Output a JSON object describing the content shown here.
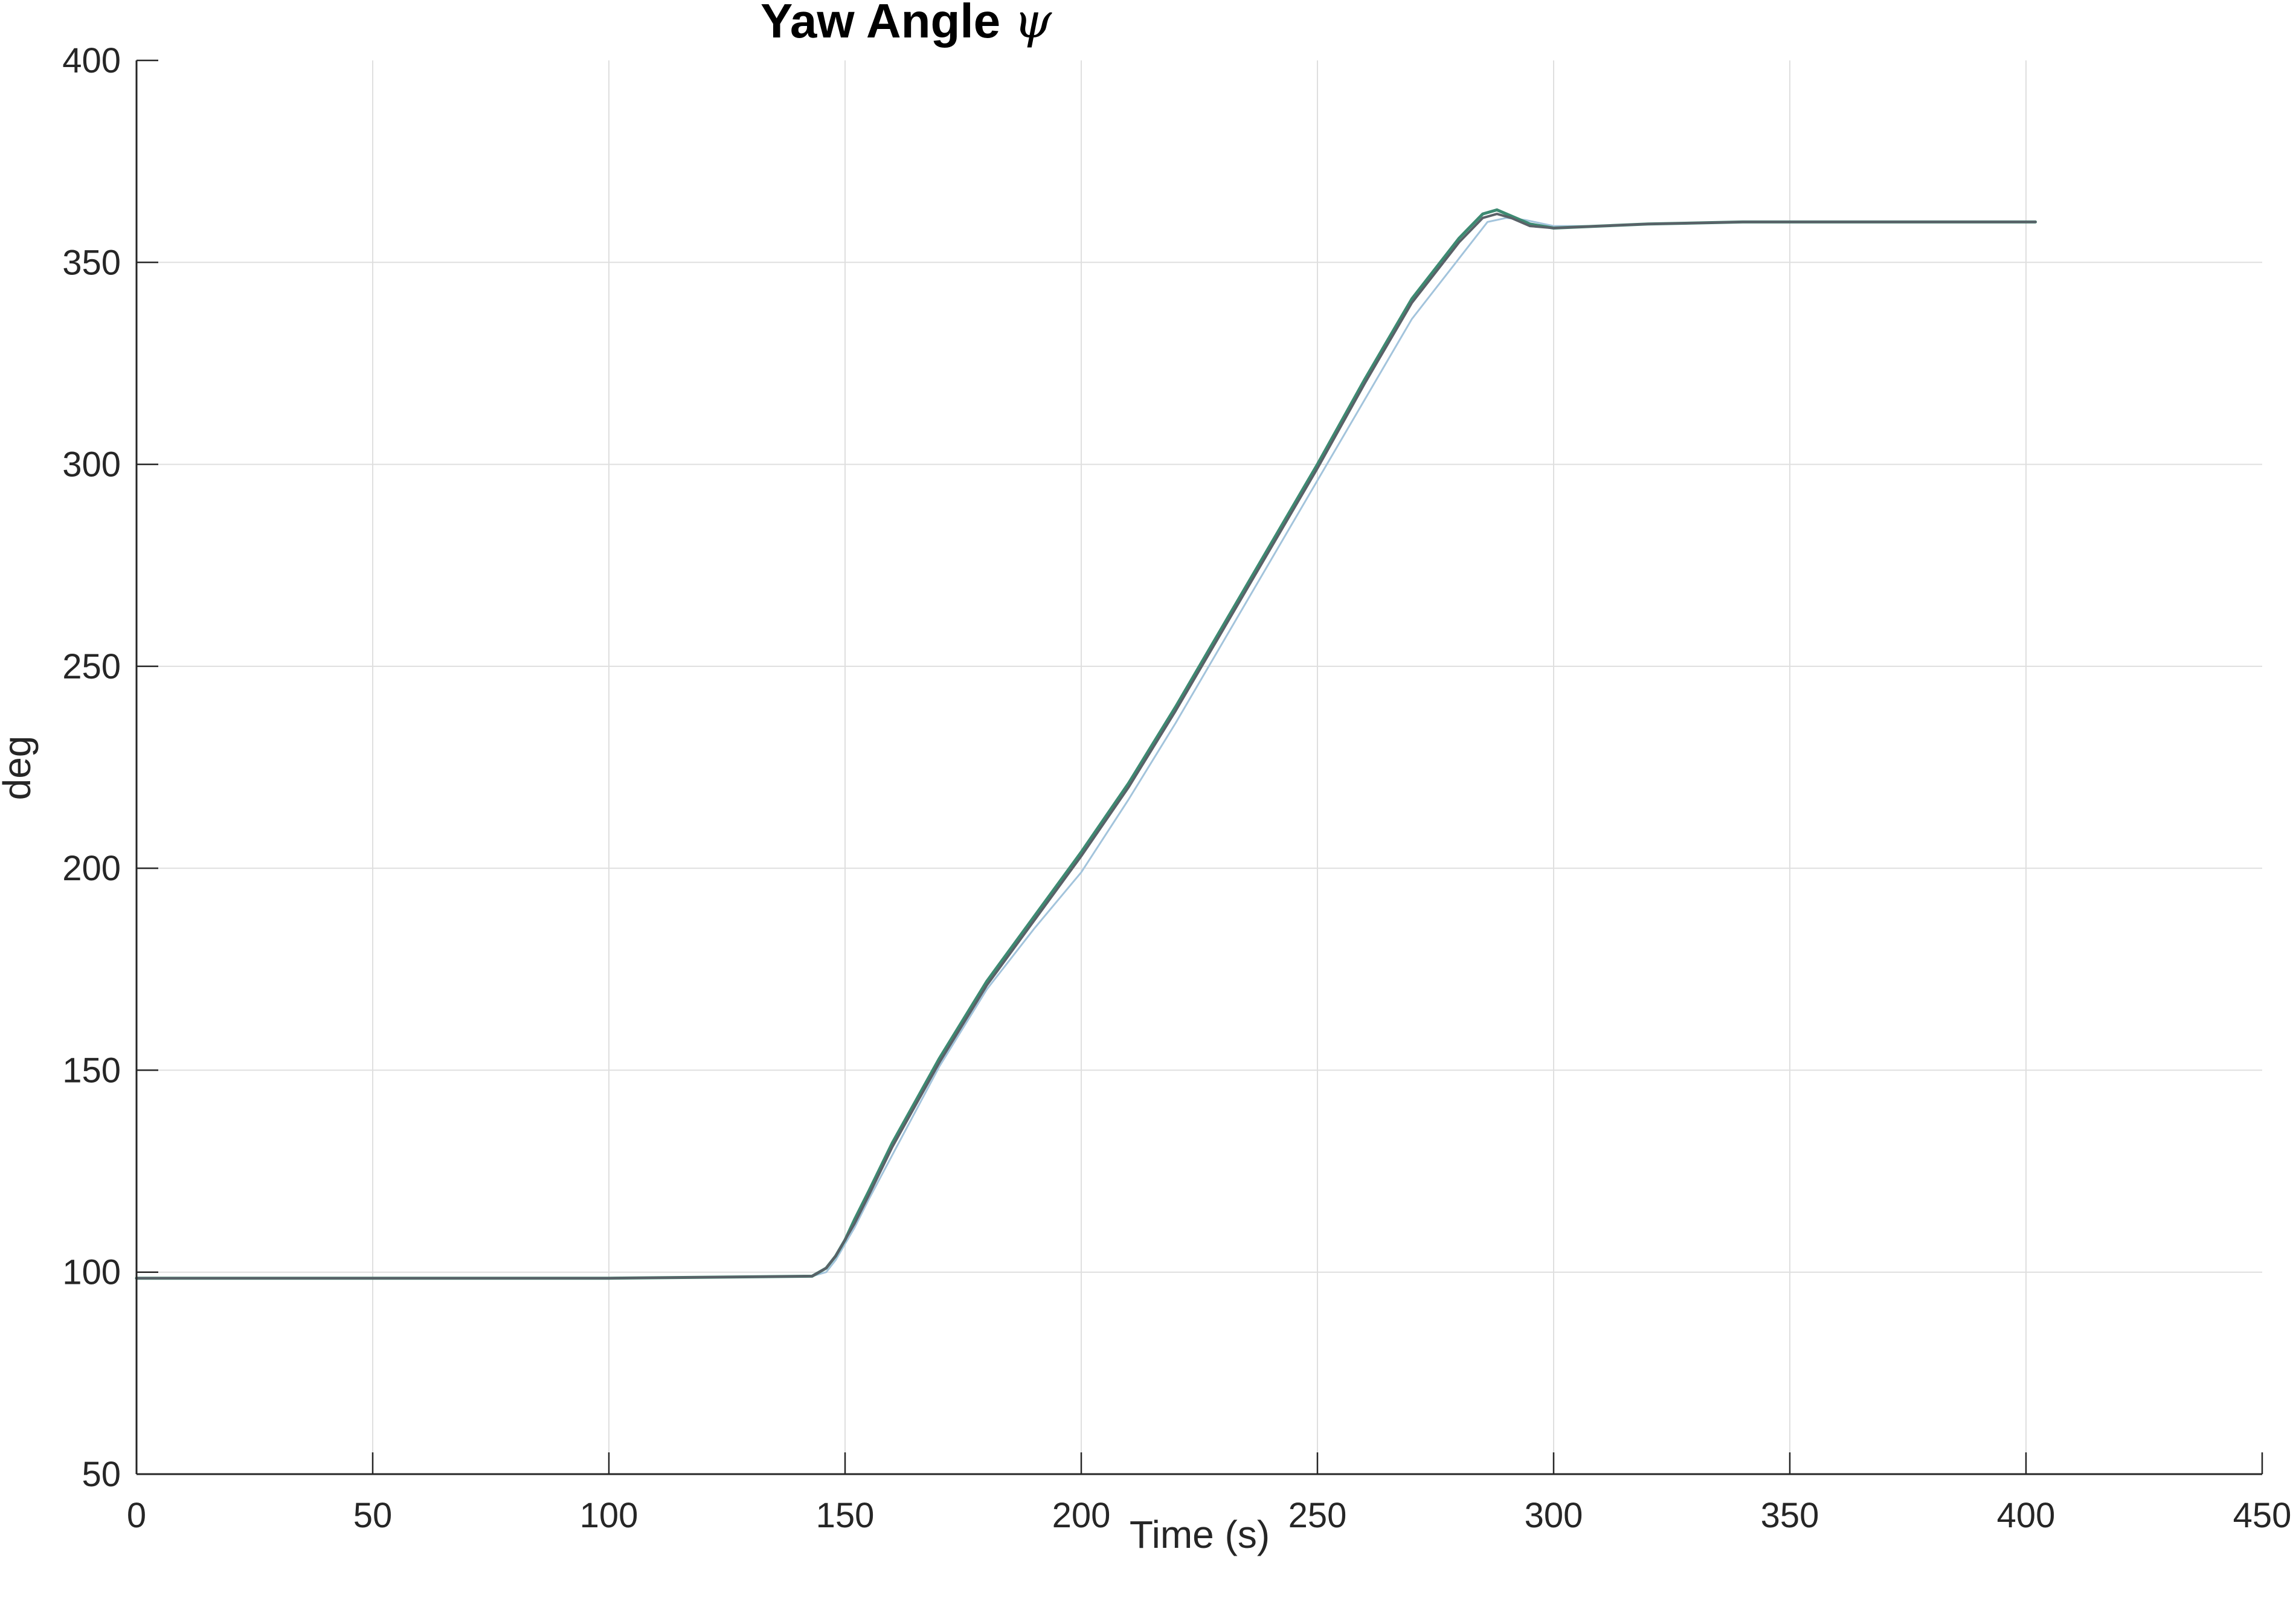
{
  "chart_data": {
    "type": "line",
    "title": "Yaw Angle",
    "title_symbol": "ψ",
    "xlabel": "Time (s)",
    "ylabel": "deg",
    "xlim": [
      0,
      450
    ],
    "ylim": [
      50,
      400
    ],
    "xticks": [
      "0",
      "50",
      "100",
      "150",
      "200",
      "250",
      "300",
      "350",
      "400",
      "450"
    ],
    "yticks": [
      "50",
      "100",
      "150",
      "200",
      "250",
      "300",
      "350",
      "400"
    ],
    "grid": true,
    "legend": "none",
    "series": [
      {
        "color": "#a3c4dc",
        "width": 3,
        "x": [
          0,
          50,
          100,
          143,
          146,
          148,
          150,
          152,
          155,
          160,
          170,
          180,
          190,
          200,
          210,
          220,
          230,
          240,
          250,
          260,
          270,
          280,
          286,
          290,
          294,
          300,
          310,
          320,
          340,
          360,
          380,
          400
        ],
        "y": [
          98.5,
          98.5,
          98.5,
          99,
          100,
          103,
          107,
          111,
          118,
          129,
          151,
          170,
          185,
          199,
          217,
          236,
          256,
          276,
          296,
          316,
          336,
          351,
          360,
          361,
          360.5,
          359,
          359,
          359.5,
          360,
          360,
          360,
          360
        ]
      },
      {
        "color": "#3d8a72",
        "width": 5,
        "x": [
          0,
          50,
          100,
          143,
          146,
          148,
          150,
          152,
          155,
          160,
          170,
          180,
          190,
          200,
          210,
          220,
          230,
          240,
          250,
          260,
          270,
          280,
          285,
          288,
          291,
          295,
          300,
          310,
          320,
          340,
          360,
          380,
          402
        ],
        "y": [
          98.5,
          98.5,
          98.5,
          99,
          101,
          104,
          108,
          113,
          120,
          132,
          153,
          172,
          188,
          204,
          221,
          240,
          260,
          280,
          300,
          321,
          341,
          356,
          362,
          363,
          361.5,
          359.5,
          358.5,
          359,
          359.5,
          360,
          360,
          360,
          360
        ]
      },
      {
        "color": "#5a6168",
        "width": 4,
        "x": [
          0,
          50,
          100,
          143,
          146,
          148,
          150,
          152,
          155,
          160,
          170,
          180,
          190,
          200,
          210,
          220,
          230,
          240,
          250,
          260,
          270,
          280,
          285,
          288,
          291,
          295,
          300,
          310,
          320,
          340,
          360,
          380,
          402
        ],
        "y": [
          98.5,
          98.5,
          98.5,
          99,
          101,
          104,
          108,
          112,
          119,
          131,
          152,
          171,
          187,
          203,
          220,
          239,
          259,
          279,
          299,
          320,
          340,
          355,
          361,
          362,
          361,
          359,
          358.5,
          359,
          359.5,
          360,
          360,
          360,
          360
        ]
      }
    ]
  }
}
